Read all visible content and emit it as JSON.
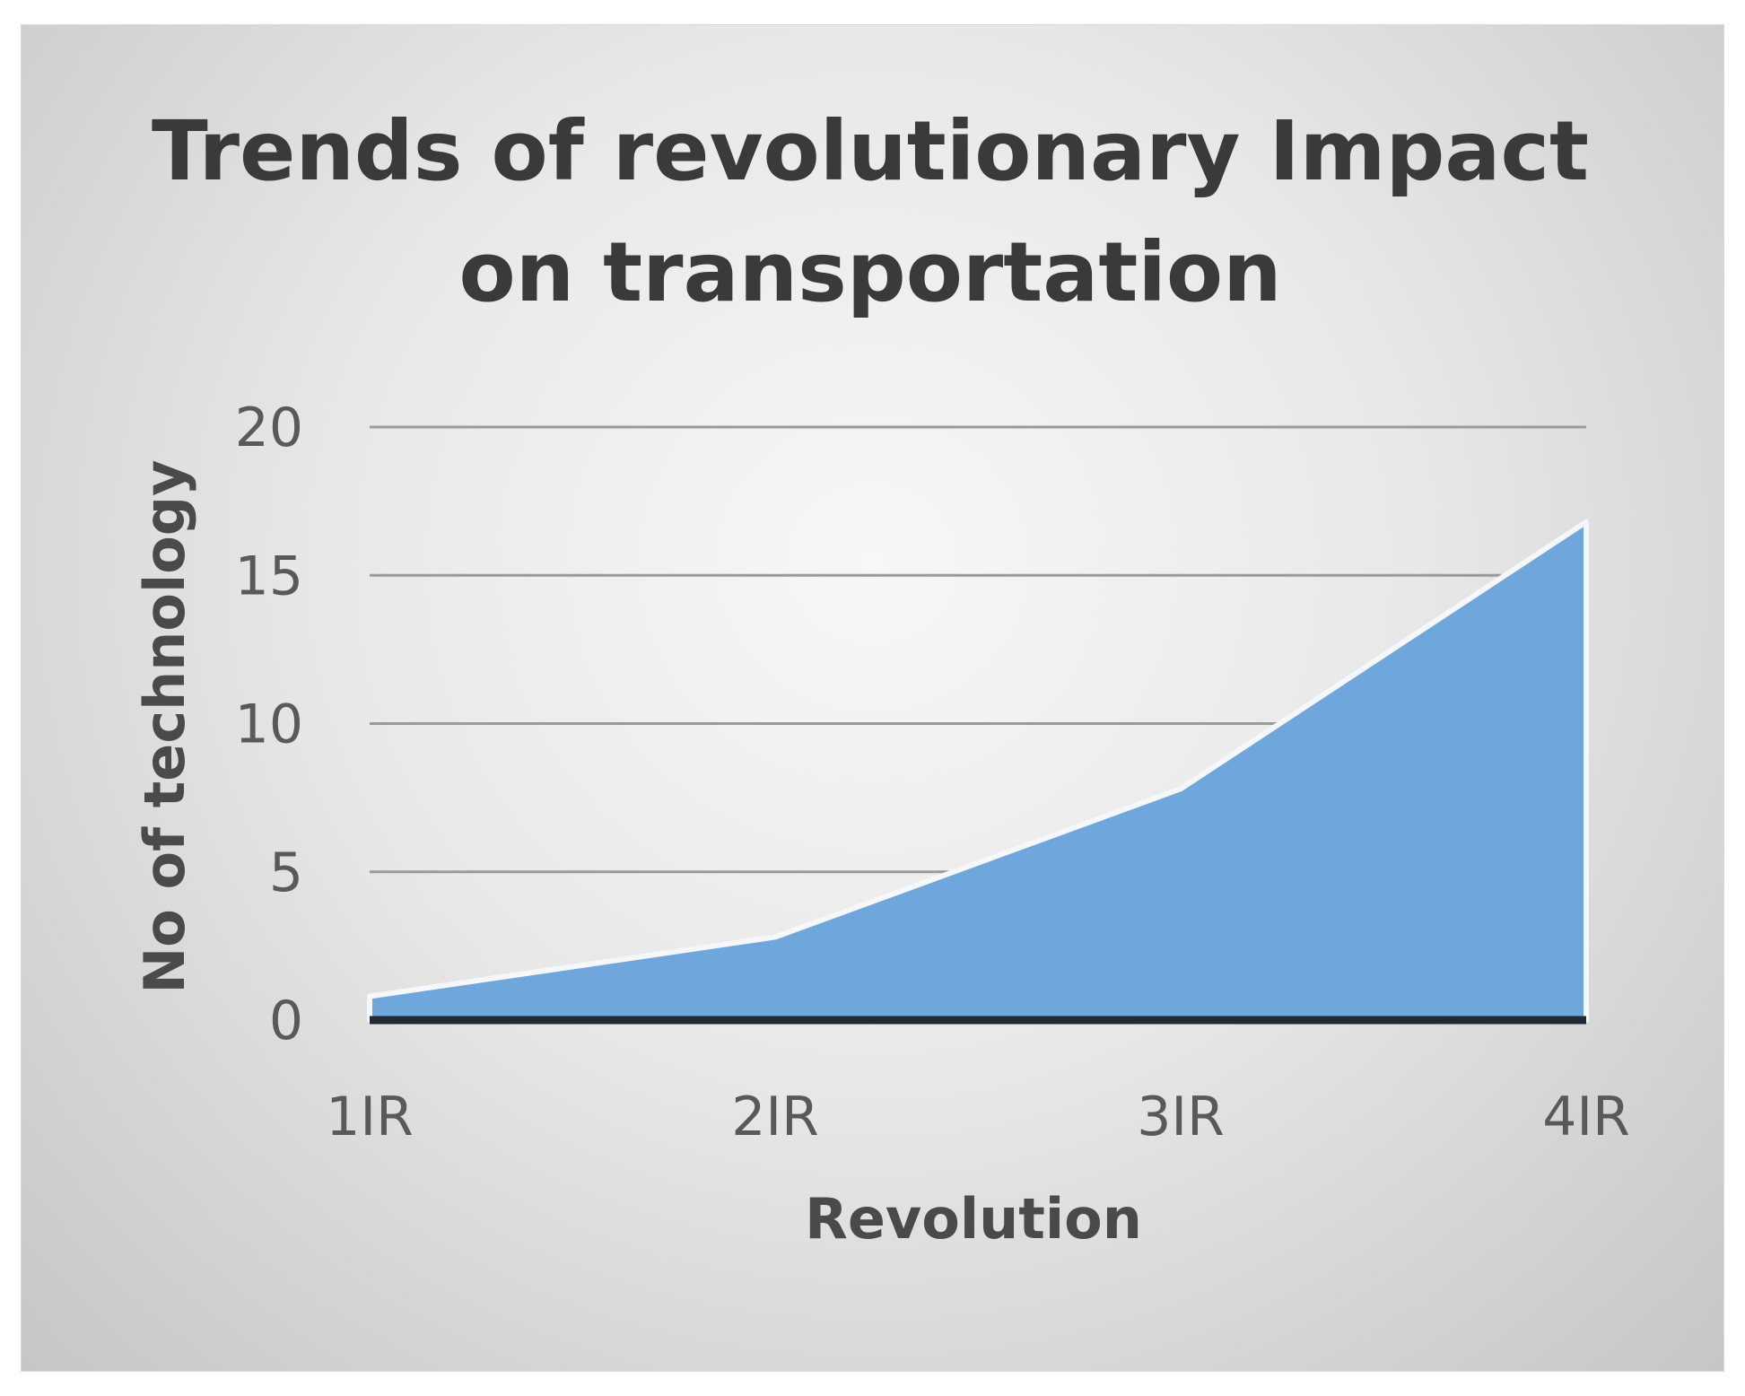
{
  "chart_data": {
    "type": "area",
    "title_lines": [
      "Trends of revolutionary Impact",
      "on transportation"
    ],
    "xlabel": "Revolution",
    "ylabel": "No of technology",
    "categories": [
      "1IR",
      "2IR",
      "3IR",
      "4IR"
    ],
    "series": [
      {
        "values": [
          0.8,
          2.8,
          7.8,
          16.8
        ]
      }
    ],
    "ylim": [
      0,
      20
    ],
    "yticks": [
      "0",
      "5",
      "10",
      "15",
      "20"
    ],
    "grid": true,
    "legend": "none",
    "colors": {
      "area_fill": "#6fa6db",
      "area_outline": "#f4f8fc",
      "gridline": "#9a9a9a",
      "baseline": "#1f2a36"
    }
  }
}
